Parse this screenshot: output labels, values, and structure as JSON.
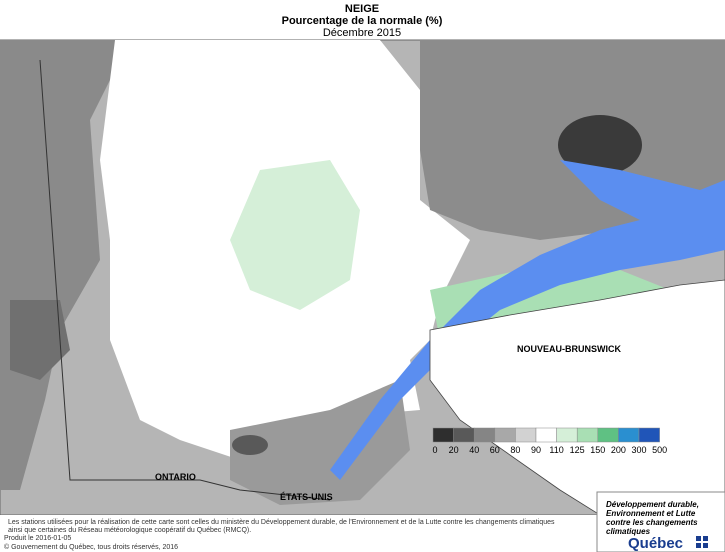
{
  "header": {
    "title": "NEIGE",
    "subtitle": "Pourcentage de la normale (%)",
    "period": "Décembre 2015"
  },
  "regions": [
    "NOUVEAU-BRUNSWICK",
    "ONTARIO",
    "ÉTATS-UNIS"
  ],
  "legend": {
    "labels": [
      0,
      20,
      40,
      60,
      80,
      90,
      110,
      125,
      150,
      200,
      300,
      500
    ],
    "colors": [
      "#2e2e2e",
      "#595959",
      "#858585",
      "#a8a8a8",
      "#d2d2d2",
      "#ffffff",
      "#d5efd8",
      "#a9dfb4",
      "#5fc183",
      "#2a8fd0",
      "#2055b8",
      "#1a1ab8"
    ]
  },
  "footer": {
    "notes": [
      "Les stations utilisées pour la réalisation de cette carte sont celles du ministère du Développement durable, de l'Environnement et de la Lutte contre les changements climatiques",
      "ainsi que certaines du Réseau météorologique coopératif du Québec (RMCQ)."
    ],
    "produced": "Produit le 2016-01-05",
    "copyright": "© Gouvernement du Québec, tous droits réservés, 2016"
  },
  "logo": {
    "lines": [
      "Développement durable,",
      "Environnement et Lutte",
      "contre les changements",
      "climatiques"
    ],
    "name": "Québec"
  }
}
